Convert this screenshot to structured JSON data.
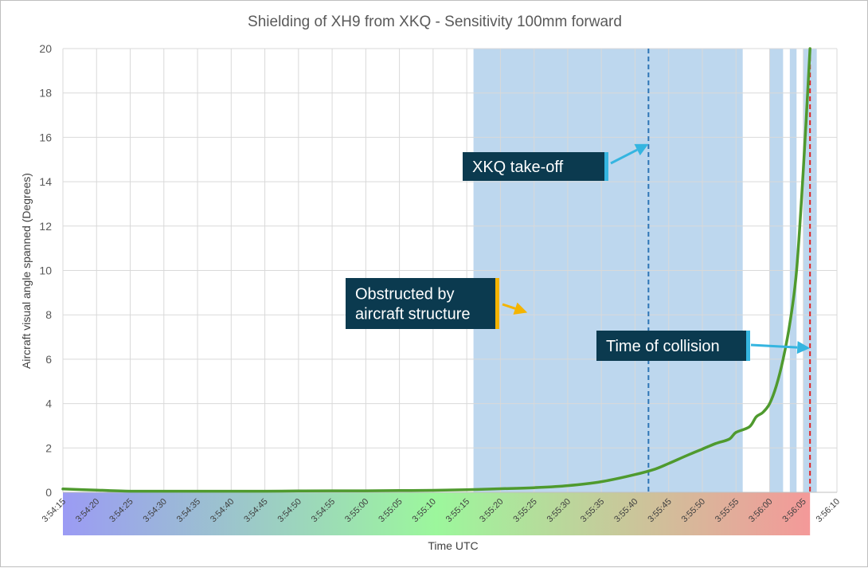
{
  "chart_data": {
    "type": "line",
    "title": "Shielding of XH9 from XKQ - Sensitivity 100mm forward",
    "xlabel": "Time UTC",
    "ylabel": "Aircraft visual angle spanned (Degrees)",
    "x_tick_labels": [
      "3:54:15",
      "3:54:20",
      "3:54:25",
      "3:54:30",
      "3:54:35",
      "3:54:40",
      "3:54:45",
      "3:54:50",
      "3:54:55",
      "3:55:00",
      "3:55:05",
      "3:55:10",
      "3:55:15",
      "3:55:20",
      "3:55:25",
      "3:55:30",
      "3:55:35",
      "3:55:40",
      "3:55:45",
      "3:55:50",
      "3:55:55",
      "3:56:00",
      "3:56:05",
      "3:56:10"
    ],
    "y_ticks": [
      0,
      2,
      4,
      6,
      8,
      10,
      12,
      14,
      16,
      18,
      20
    ],
    "xlim": [
      "3:54:15",
      "3:56:10"
    ],
    "ylim": [
      0,
      20
    ],
    "grid": true,
    "series": [
      {
        "color": "#4f9a2e",
        "points": [
          [
            "3:54:15",
            0.15
          ],
          [
            "3:54:20",
            0.1
          ],
          [
            "3:54:25",
            0.05
          ],
          [
            "3:54:30",
            0.05
          ],
          [
            "3:54:35",
            0.05
          ],
          [
            "3:54:40",
            0.05
          ],
          [
            "3:54:45",
            0.05
          ],
          [
            "3:54:50",
            0.06
          ],
          [
            "3:54:55",
            0.07
          ],
          [
            "3:55:00",
            0.07
          ],
          [
            "3:55:05",
            0.08
          ],
          [
            "3:55:10",
            0.09
          ],
          [
            "3:55:15",
            0.12
          ],
          [
            "3:55:20",
            0.16
          ],
          [
            "3:55:25",
            0.21
          ],
          [
            "3:55:30",
            0.3
          ],
          [
            "3:55:35",
            0.48
          ],
          [
            "3:55:40",
            0.8
          ],
          [
            "3:55:43",
            1.05
          ],
          [
            "3:55:45",
            1.3
          ],
          [
            "3:55:48",
            1.7
          ],
          [
            "3:55:50",
            1.95
          ],
          [
            "3:55:52",
            2.2
          ],
          [
            "3:55:54",
            2.4
          ],
          [
            "3:55:55",
            2.7
          ],
          [
            "3:55:57",
            2.95
          ],
          [
            "3:55:58",
            3.4
          ],
          [
            "3:55:59",
            3.6
          ],
          [
            "3:56:00",
            4.0
          ],
          [
            "3:56:01",
            4.8
          ],
          [
            "3:56:02",
            6.0
          ],
          [
            "3:56:03",
            7.6
          ],
          [
            "3:56:04",
            10.0
          ],
          [
            "3:56:05",
            14.5
          ],
          [
            "3:56:06",
            20.0
          ]
        ]
      }
    ],
    "shaded_regions": [
      {
        "start": "3:55:16",
        "end": "3:55:56",
        "color": "#bdd7ee"
      },
      {
        "start": "3:56:00",
        "end": "3:56:02",
        "color": "#bdd7ee"
      },
      {
        "start": "3:56:03",
        "end": "3:56:04",
        "color": "#bdd7ee"
      },
      {
        "start": "3:56:05",
        "end": "3:56:07",
        "color": "#bdd7ee"
      }
    ],
    "vertical_lines": [
      {
        "x": "3:55:42",
        "color": "#2e75b6",
        "style": "dashed"
      },
      {
        "x": "3:56:06",
        "color": "#e02020",
        "style": "dashed"
      }
    ],
    "annotations": [
      {
        "text": [
          "XKQ take-off"
        ],
        "box_color": "#0b3a4f",
        "accent_color": "#35b5e0",
        "arrow_to": [
          "3:55:42",
          15.7
        ]
      },
      {
        "text": [
          "Obstructed by",
          "aircraft structure"
        ],
        "box_color": "#0b3a4f",
        "accent_color": "#f4b400",
        "arrow_to": [
          "3:55:24",
          8.1
        ]
      },
      {
        "text": [
          "Time of collision"
        ],
        "box_color": "#0b3a4f",
        "accent_color": "#35b5e0",
        "arrow_to": [
          "3:56:06",
          6.5
        ]
      }
    ],
    "x_axis_band": {
      "colors": [
        "#9b9bf4",
        "#9cf79c",
        "#f49999"
      ],
      "start": "3:54:15",
      "end": "3:56:06"
    }
  }
}
